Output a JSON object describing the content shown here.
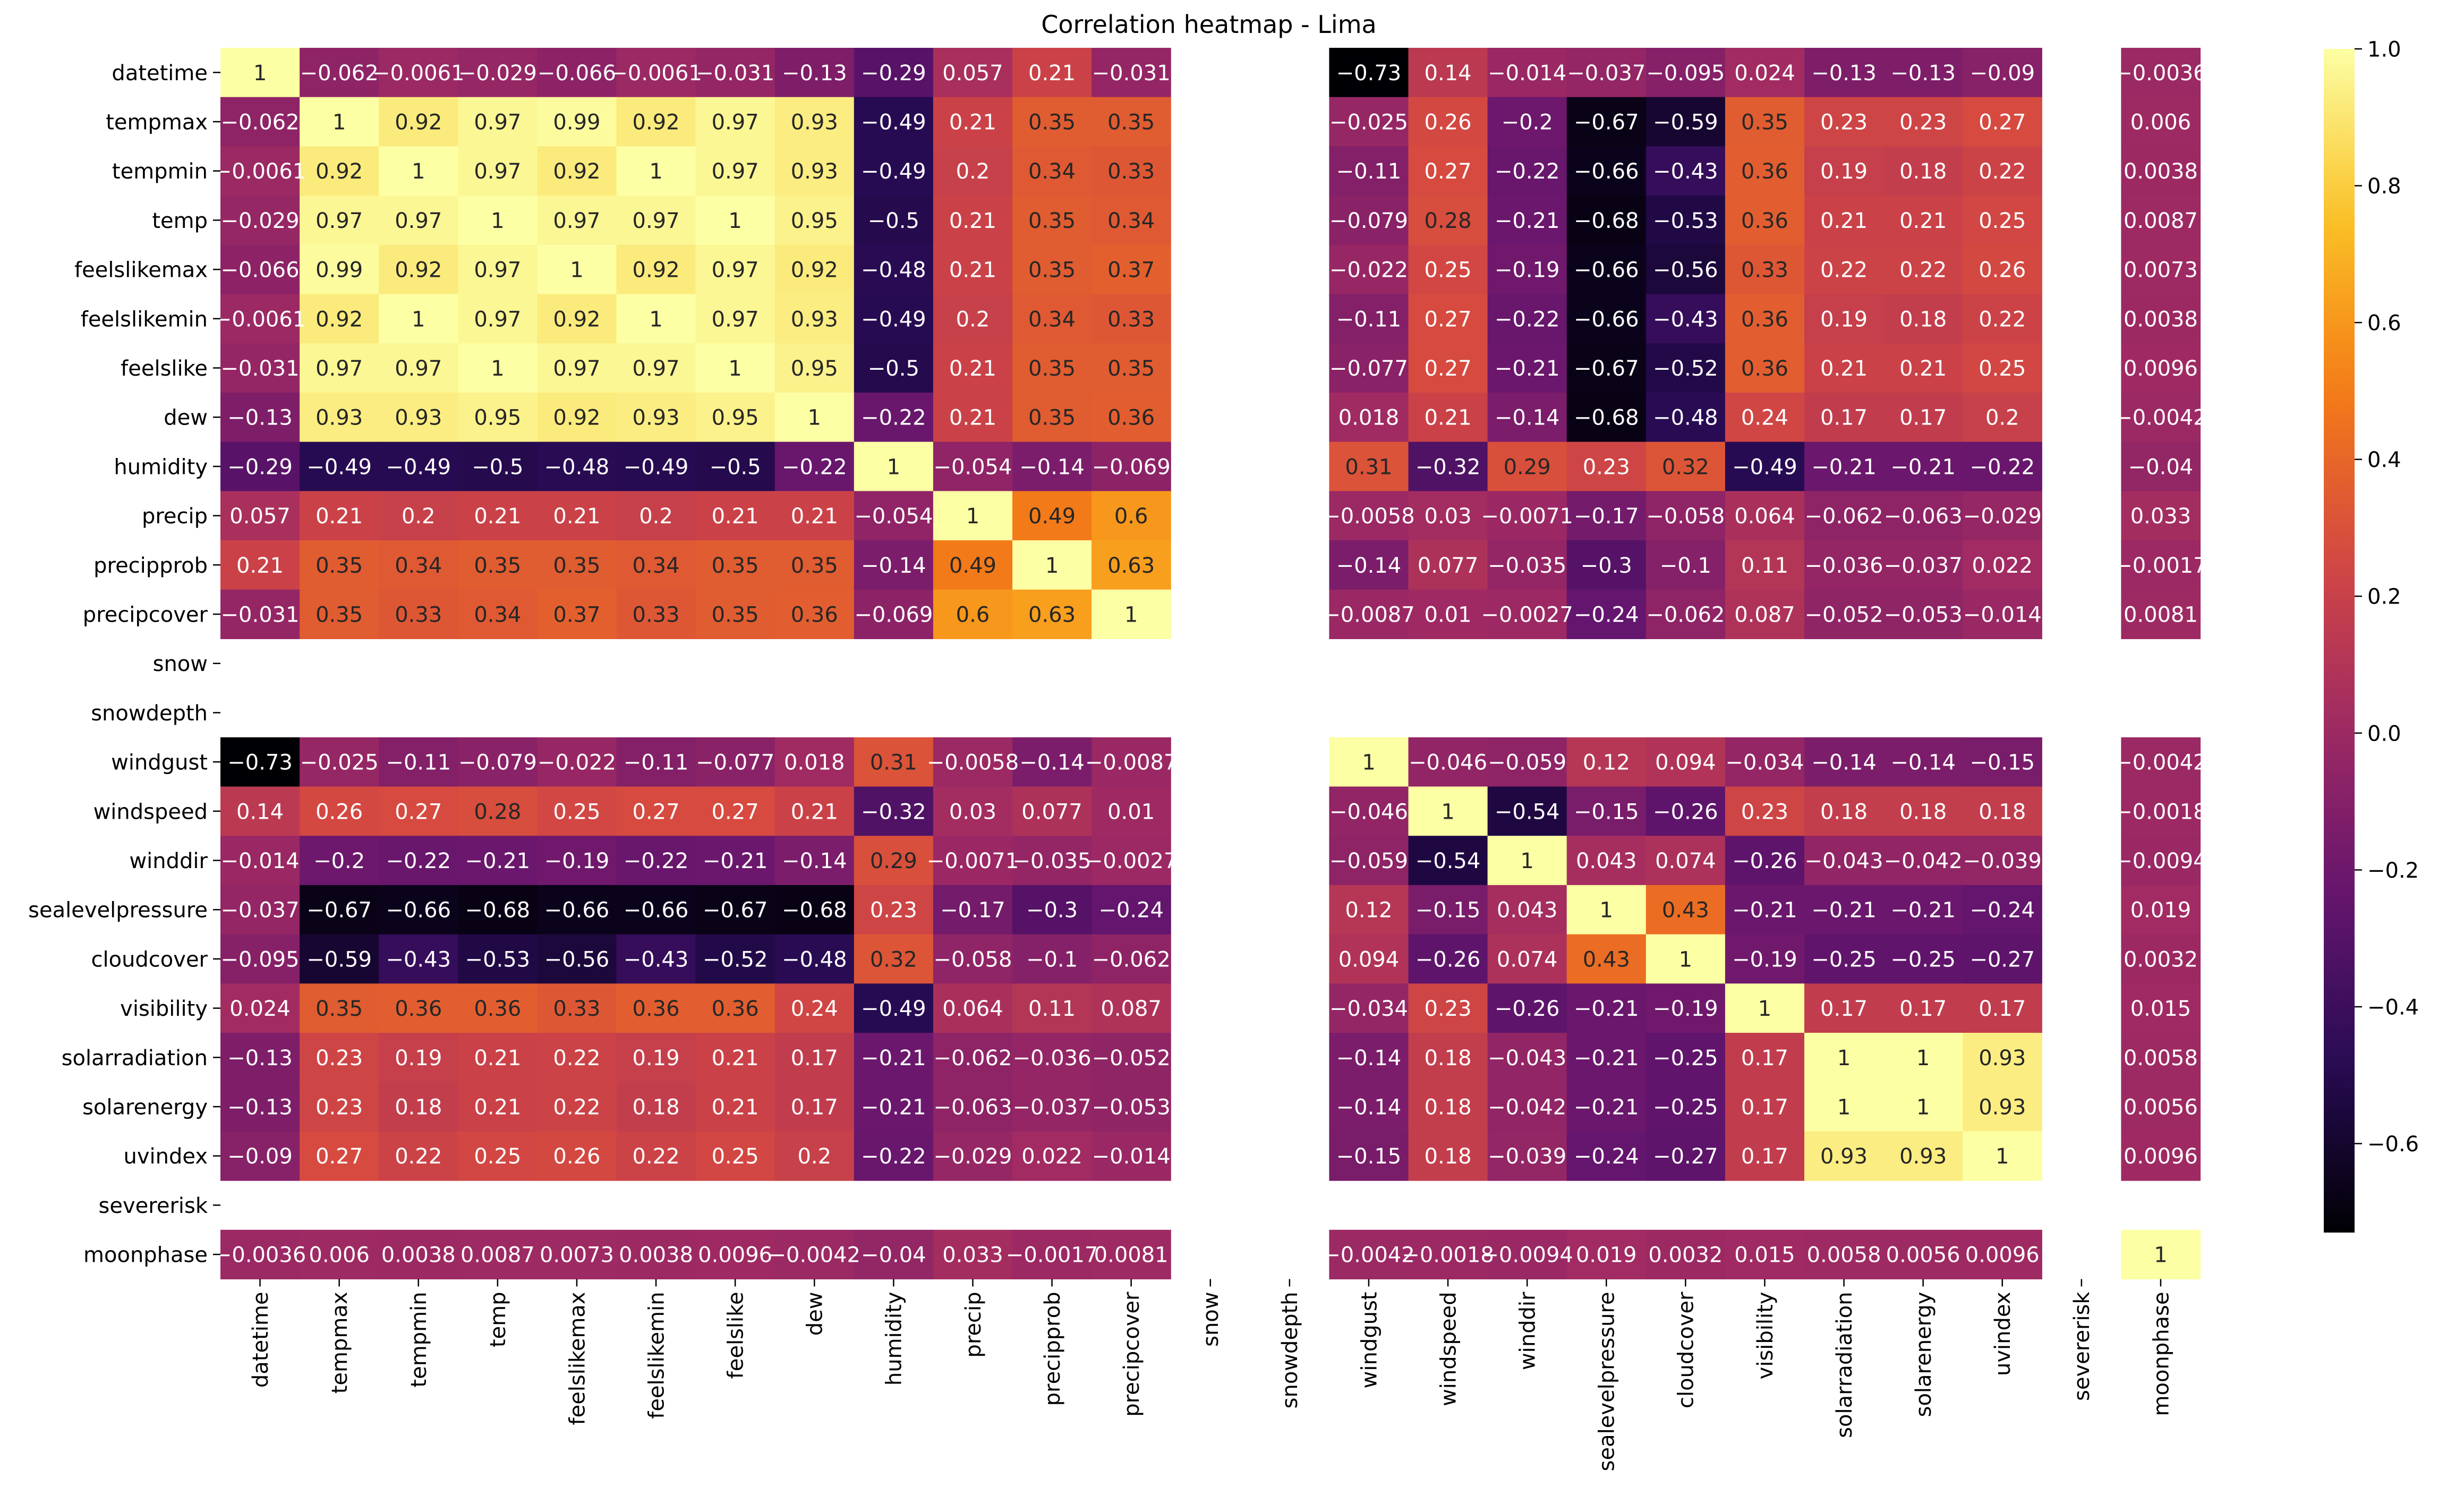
{
  "chart_data": {
    "type": "heatmap",
    "title": "Correlation heatmap - Lima",
    "colormap": "inferno",
    "colorbar": {
      "vmin": -0.73,
      "vmax": 1.0,
      "ticks": [
        1.0,
        0.8,
        0.6,
        0.4,
        0.2,
        0.0,
        -0.2,
        -0.4,
        -0.6
      ],
      "tick_labels": [
        "1.0",
        "0.8",
        "0.6",
        "0.4",
        "0.2",
        "0.0",
        "−0.2",
        "−0.4",
        "−0.6"
      ]
    },
    "labels": [
      "datetime",
      "tempmax",
      "tempmin",
      "temp",
      "feelslikemax",
      "feelslikemin",
      "feelslike",
      "dew",
      "humidity",
      "precip",
      "precipprob",
      "precipcover",
      "snow",
      "snowdepth",
      "windgust",
      "windspeed",
      "winddir",
      "sealevelpressure",
      "cloudcover",
      "visibility",
      "solarradiation",
      "solarenergy",
      "uvindex",
      "severerisk",
      "moonphase"
    ],
    "matrix": [
      [
        1,
        -0.062,
        -0.0061,
        -0.029,
        -0.066,
        -0.0061,
        -0.031,
        -0.13,
        -0.29,
        0.057,
        0.21,
        -0.031,
        null,
        null,
        -0.73,
        0.14,
        -0.014,
        -0.037,
        -0.095,
        0.024,
        -0.13,
        -0.13,
        -0.09,
        null,
        -0.0036
      ],
      [
        -0.062,
        1,
        0.92,
        0.97,
        0.99,
        0.92,
        0.97,
        0.93,
        -0.49,
        0.21,
        0.35,
        0.35,
        null,
        null,
        -0.025,
        0.26,
        -0.2,
        -0.67,
        -0.59,
        0.35,
        0.23,
        0.23,
        0.27,
        null,
        0.006
      ],
      [
        -0.0061,
        0.92,
        1,
        0.97,
        0.92,
        1,
        0.97,
        0.93,
        -0.49,
        0.2,
        0.34,
        0.33,
        null,
        null,
        -0.11,
        0.27,
        -0.22,
        -0.66,
        -0.43,
        0.36,
        0.19,
        0.18,
        0.22,
        null,
        0.0038
      ],
      [
        -0.029,
        0.97,
        0.97,
        1,
        0.97,
        0.97,
        1,
        0.95,
        -0.5,
        0.21,
        0.35,
        0.34,
        null,
        null,
        -0.079,
        0.28,
        -0.21,
        -0.68,
        -0.53,
        0.36,
        0.21,
        0.21,
        0.25,
        null,
        0.0087
      ],
      [
        -0.066,
        0.99,
        0.92,
        0.97,
        1,
        0.92,
        0.97,
        0.92,
        -0.48,
        0.21,
        0.35,
        0.37,
        null,
        null,
        -0.022,
        0.25,
        -0.19,
        -0.66,
        -0.56,
        0.33,
        0.22,
        0.22,
        0.26,
        null,
        0.0073
      ],
      [
        -0.0061,
        0.92,
        1,
        0.97,
        0.92,
        1,
        0.97,
        0.93,
        -0.49,
        0.2,
        0.34,
        0.33,
        null,
        null,
        -0.11,
        0.27,
        -0.22,
        -0.66,
        -0.43,
        0.36,
        0.19,
        0.18,
        0.22,
        null,
        0.0038
      ],
      [
        -0.031,
        0.97,
        0.97,
        1,
        0.97,
        0.97,
        1,
        0.95,
        -0.5,
        0.21,
        0.35,
        0.35,
        null,
        null,
        -0.077,
        0.27,
        -0.21,
        -0.67,
        -0.52,
        0.36,
        0.21,
        0.21,
        0.25,
        null,
        0.0096
      ],
      [
        -0.13,
        0.93,
        0.93,
        0.95,
        0.92,
        0.93,
        0.95,
        1,
        -0.22,
        0.21,
        0.35,
        0.36,
        null,
        null,
        0.018,
        0.21,
        -0.14,
        -0.68,
        -0.48,
        0.24,
        0.17,
        0.17,
        0.2,
        null,
        -0.0042
      ],
      [
        -0.29,
        -0.49,
        -0.49,
        -0.5,
        -0.48,
        -0.49,
        -0.5,
        -0.22,
        1,
        -0.054,
        -0.14,
        -0.069,
        null,
        null,
        0.31,
        -0.32,
        0.29,
        0.23,
        0.32,
        -0.49,
        -0.21,
        -0.21,
        -0.22,
        null,
        -0.04
      ],
      [
        0.057,
        0.21,
        0.2,
        0.21,
        0.21,
        0.2,
        0.21,
        0.21,
        -0.054,
        1,
        0.49,
        0.6,
        null,
        null,
        -0.0058,
        0.03,
        -0.0071,
        -0.17,
        -0.058,
        0.064,
        -0.062,
        -0.063,
        -0.029,
        null,
        0.033
      ],
      [
        0.21,
        0.35,
        0.34,
        0.35,
        0.35,
        0.34,
        0.35,
        0.35,
        -0.14,
        0.49,
        1,
        0.63,
        null,
        null,
        -0.14,
        0.077,
        -0.035,
        -0.3,
        -0.1,
        0.11,
        -0.036,
        -0.037,
        0.022,
        null,
        -0.0017
      ],
      [
        -0.031,
        0.35,
        0.33,
        0.34,
        0.37,
        0.33,
        0.35,
        0.36,
        -0.069,
        0.6,
        0.63,
        1,
        null,
        null,
        -0.0087,
        0.01,
        -0.0027,
        -0.24,
        -0.062,
        0.087,
        -0.052,
        -0.053,
        -0.014,
        null,
        0.0081
      ],
      [
        null,
        null,
        null,
        null,
        null,
        null,
        null,
        null,
        null,
        null,
        null,
        null,
        null,
        null,
        null,
        null,
        null,
        null,
        null,
        null,
        null,
        null,
        null,
        null,
        null
      ],
      [
        null,
        null,
        null,
        null,
        null,
        null,
        null,
        null,
        null,
        null,
        null,
        null,
        null,
        null,
        null,
        null,
        null,
        null,
        null,
        null,
        null,
        null,
        null,
        null,
        null
      ],
      [
        -0.73,
        -0.025,
        -0.11,
        -0.079,
        -0.022,
        -0.11,
        -0.077,
        0.018,
        0.31,
        -0.0058,
        -0.14,
        -0.0087,
        null,
        null,
        1,
        -0.046,
        -0.059,
        0.12,
        0.094,
        -0.034,
        -0.14,
        -0.14,
        -0.15,
        null,
        -0.0042
      ],
      [
        0.14,
        0.26,
        0.27,
        0.28,
        0.25,
        0.27,
        0.27,
        0.21,
        -0.32,
        0.03,
        0.077,
        0.01,
        null,
        null,
        -0.046,
        1,
        -0.54,
        -0.15,
        -0.26,
        0.23,
        0.18,
        0.18,
        0.18,
        null,
        -0.0018
      ],
      [
        -0.014,
        -0.2,
        -0.22,
        -0.21,
        -0.19,
        -0.22,
        -0.21,
        -0.14,
        0.29,
        -0.0071,
        -0.035,
        -0.0027,
        null,
        null,
        -0.059,
        -0.54,
        1,
        0.043,
        0.074,
        -0.26,
        -0.043,
        -0.042,
        -0.039,
        null,
        -0.0094
      ],
      [
        -0.037,
        -0.67,
        -0.66,
        -0.68,
        -0.66,
        -0.66,
        -0.67,
        -0.68,
        0.23,
        -0.17,
        -0.3,
        -0.24,
        null,
        null,
        0.12,
        -0.15,
        0.043,
        1,
        0.43,
        -0.21,
        -0.21,
        -0.21,
        -0.24,
        null,
        0.019
      ],
      [
        -0.095,
        -0.59,
        -0.43,
        -0.53,
        -0.56,
        -0.43,
        -0.52,
        -0.48,
        0.32,
        -0.058,
        -0.1,
        -0.062,
        null,
        null,
        0.094,
        -0.26,
        0.074,
        0.43,
        1,
        -0.19,
        -0.25,
        -0.25,
        -0.27,
        null,
        0.0032
      ],
      [
        0.024,
        0.35,
        0.36,
        0.36,
        0.33,
        0.36,
        0.36,
        0.24,
        -0.49,
        0.064,
        0.11,
        0.087,
        null,
        null,
        -0.034,
        0.23,
        -0.26,
        -0.21,
        -0.19,
        1,
        0.17,
        0.17,
        0.17,
        null,
        0.015
      ],
      [
        -0.13,
        0.23,
        0.19,
        0.21,
        0.22,
        0.19,
        0.21,
        0.17,
        -0.21,
        -0.062,
        -0.036,
        -0.052,
        null,
        null,
        -0.14,
        0.18,
        -0.043,
        -0.21,
        -0.25,
        0.17,
        1,
        1,
        0.93,
        null,
        0.0058
      ],
      [
        -0.13,
        0.23,
        0.18,
        0.21,
        0.22,
        0.18,
        0.21,
        0.17,
        -0.21,
        -0.063,
        -0.037,
        -0.053,
        null,
        null,
        -0.14,
        0.18,
        -0.042,
        -0.21,
        -0.25,
        0.17,
        1,
        1,
        0.93,
        null,
        0.0056
      ],
      [
        -0.09,
        0.27,
        0.22,
        0.25,
        0.26,
        0.22,
        0.25,
        0.2,
        -0.22,
        -0.029,
        0.022,
        -0.014,
        null,
        null,
        -0.15,
        0.18,
        -0.039,
        -0.24,
        -0.27,
        0.17,
        0.93,
        0.93,
        1,
        null,
        0.0096
      ],
      [
        null,
        null,
        null,
        null,
        null,
        null,
        null,
        null,
        null,
        null,
        null,
        null,
        null,
        null,
        null,
        null,
        null,
        null,
        null,
        null,
        null,
        null,
        null,
        null,
        null
      ],
      [
        -0.0036,
        0.006,
        0.0038,
        0.0087,
        0.0073,
        0.0038,
        0.0096,
        -0.0042,
        -0.04,
        0.033,
        -0.0017,
        0.0081,
        null,
        null,
        -0.0042,
        -0.0018,
        -0.0094,
        0.019,
        0.0032,
        0.015,
        0.0058,
        0.0056,
        0.0096,
        null,
        1
      ]
    ]
  }
}
